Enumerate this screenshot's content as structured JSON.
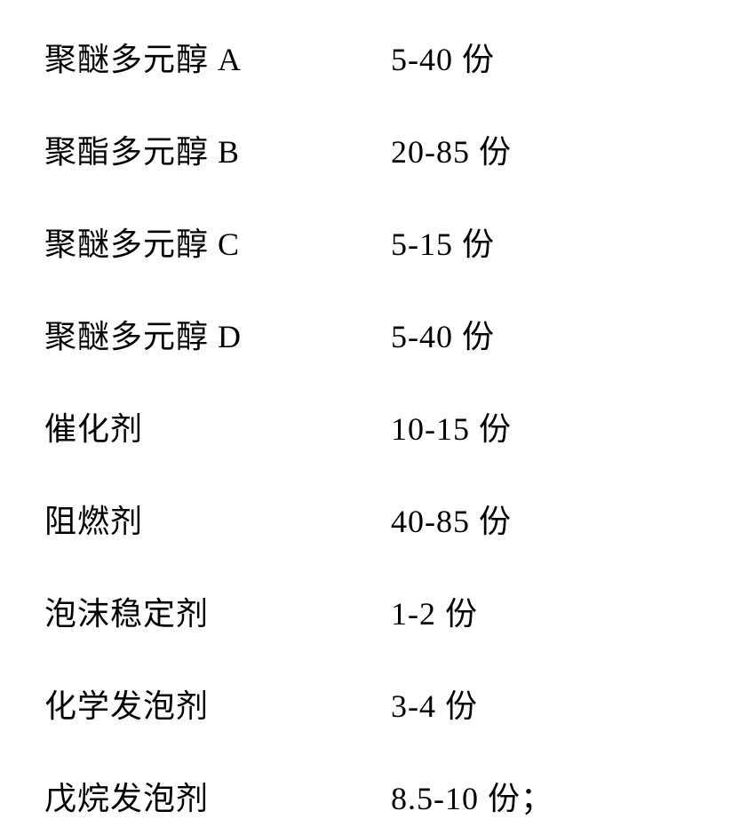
{
  "ingredients": {
    "rows": [
      {
        "name": "聚醚多元醇 A",
        "amount": "5-40 份",
        "suffix": ""
      },
      {
        "name": "聚酯多元醇 B",
        "amount": "20-85 份",
        "suffix": ""
      },
      {
        "name": "聚醚多元醇 C",
        "amount": "5-15 份",
        "suffix": ""
      },
      {
        "name": "聚醚多元醇 D",
        "amount": "5-40 份",
        "suffix": ""
      },
      {
        "name": "催化剂",
        "amount": "10-15 份",
        "suffix": ""
      },
      {
        "name": "阻燃剂",
        "amount": "40-85 份",
        "suffix": ""
      },
      {
        "name": "泡沫稳定剂",
        "amount": "1-2 份",
        "suffix": ""
      },
      {
        "name": "化学发泡剂",
        "amount": "3-4 份",
        "suffix": ""
      },
      {
        "name": "戊烷发泡剂",
        "amount": "8.5-10 份",
        "suffix": "；"
      }
    ]
  },
  "styling": {
    "font_size": 36,
    "text_color": "#000000",
    "background_color": "#ffffff",
    "name_column_width": 390,
    "row_gap": 52,
    "font_family": "SimSun, Songti SC, serif"
  }
}
